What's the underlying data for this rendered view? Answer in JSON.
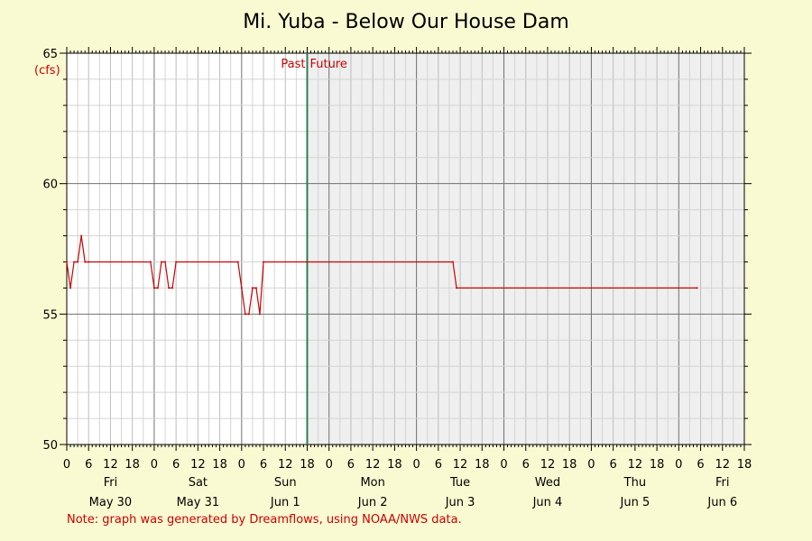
{
  "colors": {
    "background": "#fafad2",
    "plot_past": "#ffffff",
    "plot_future": "#efefef",
    "series": "#cc0000",
    "now_line": "#2e7d52"
  },
  "chart_data": {
    "type": "line",
    "title": "Mi. Yuba - Below Our House Dam",
    "ylabel": "(cfs)",
    "ylim": [
      50,
      65
    ],
    "yticks": [
      50,
      55,
      60,
      65
    ],
    "x_unit": "hours since May 30 00:00",
    "xlim": [
      0,
      186
    ],
    "now_x": 66,
    "past_label": "Past",
    "future_label": "Future",
    "hour_labels": [
      "0",
      "6",
      "12",
      "18",
      "0",
      "6",
      "12",
      "18",
      "0",
      "6",
      "12",
      "18",
      "0",
      "6",
      "12",
      "18",
      "0",
      "6",
      "12",
      "18",
      "0",
      "6",
      "12",
      "18",
      "0",
      "6",
      "12",
      "18",
      "0",
      "6",
      "12",
      "18"
    ],
    "days": [
      {
        "weekday": "Fri",
        "date": "May 30"
      },
      {
        "weekday": "Sat",
        "date": "May 31"
      },
      {
        "weekday": "Sun",
        "date": "Jun 1"
      },
      {
        "weekday": "Mon",
        "date": "Jun 2"
      },
      {
        "weekday": "Tue",
        "date": "Jun 3"
      },
      {
        "weekday": "Wed",
        "date": "Jun 4"
      },
      {
        "weekday": "Thu",
        "date": "Jun 5"
      },
      {
        "weekday": "Fri",
        "date": "Jun 6"
      }
    ],
    "series": [
      {
        "x": [
          0,
          1,
          2,
          3,
          4,
          5,
          6,
          23,
          24,
          25,
          26,
          27,
          28,
          29,
          30,
          47,
          48,
          49,
          50,
          51,
          52,
          53,
          54,
          106,
          107,
          173
        ],
        "values": [
          57,
          56,
          57,
          57,
          58,
          57,
          57,
          57,
          56,
          56,
          57,
          57,
          56,
          56,
          57,
          57,
          56,
          55,
          55,
          56,
          56,
          55,
          57,
          57,
          56,
          56
        ]
      }
    ]
  },
  "note": "Note: graph was generated by Dreamflows, using NOAA/NWS data."
}
